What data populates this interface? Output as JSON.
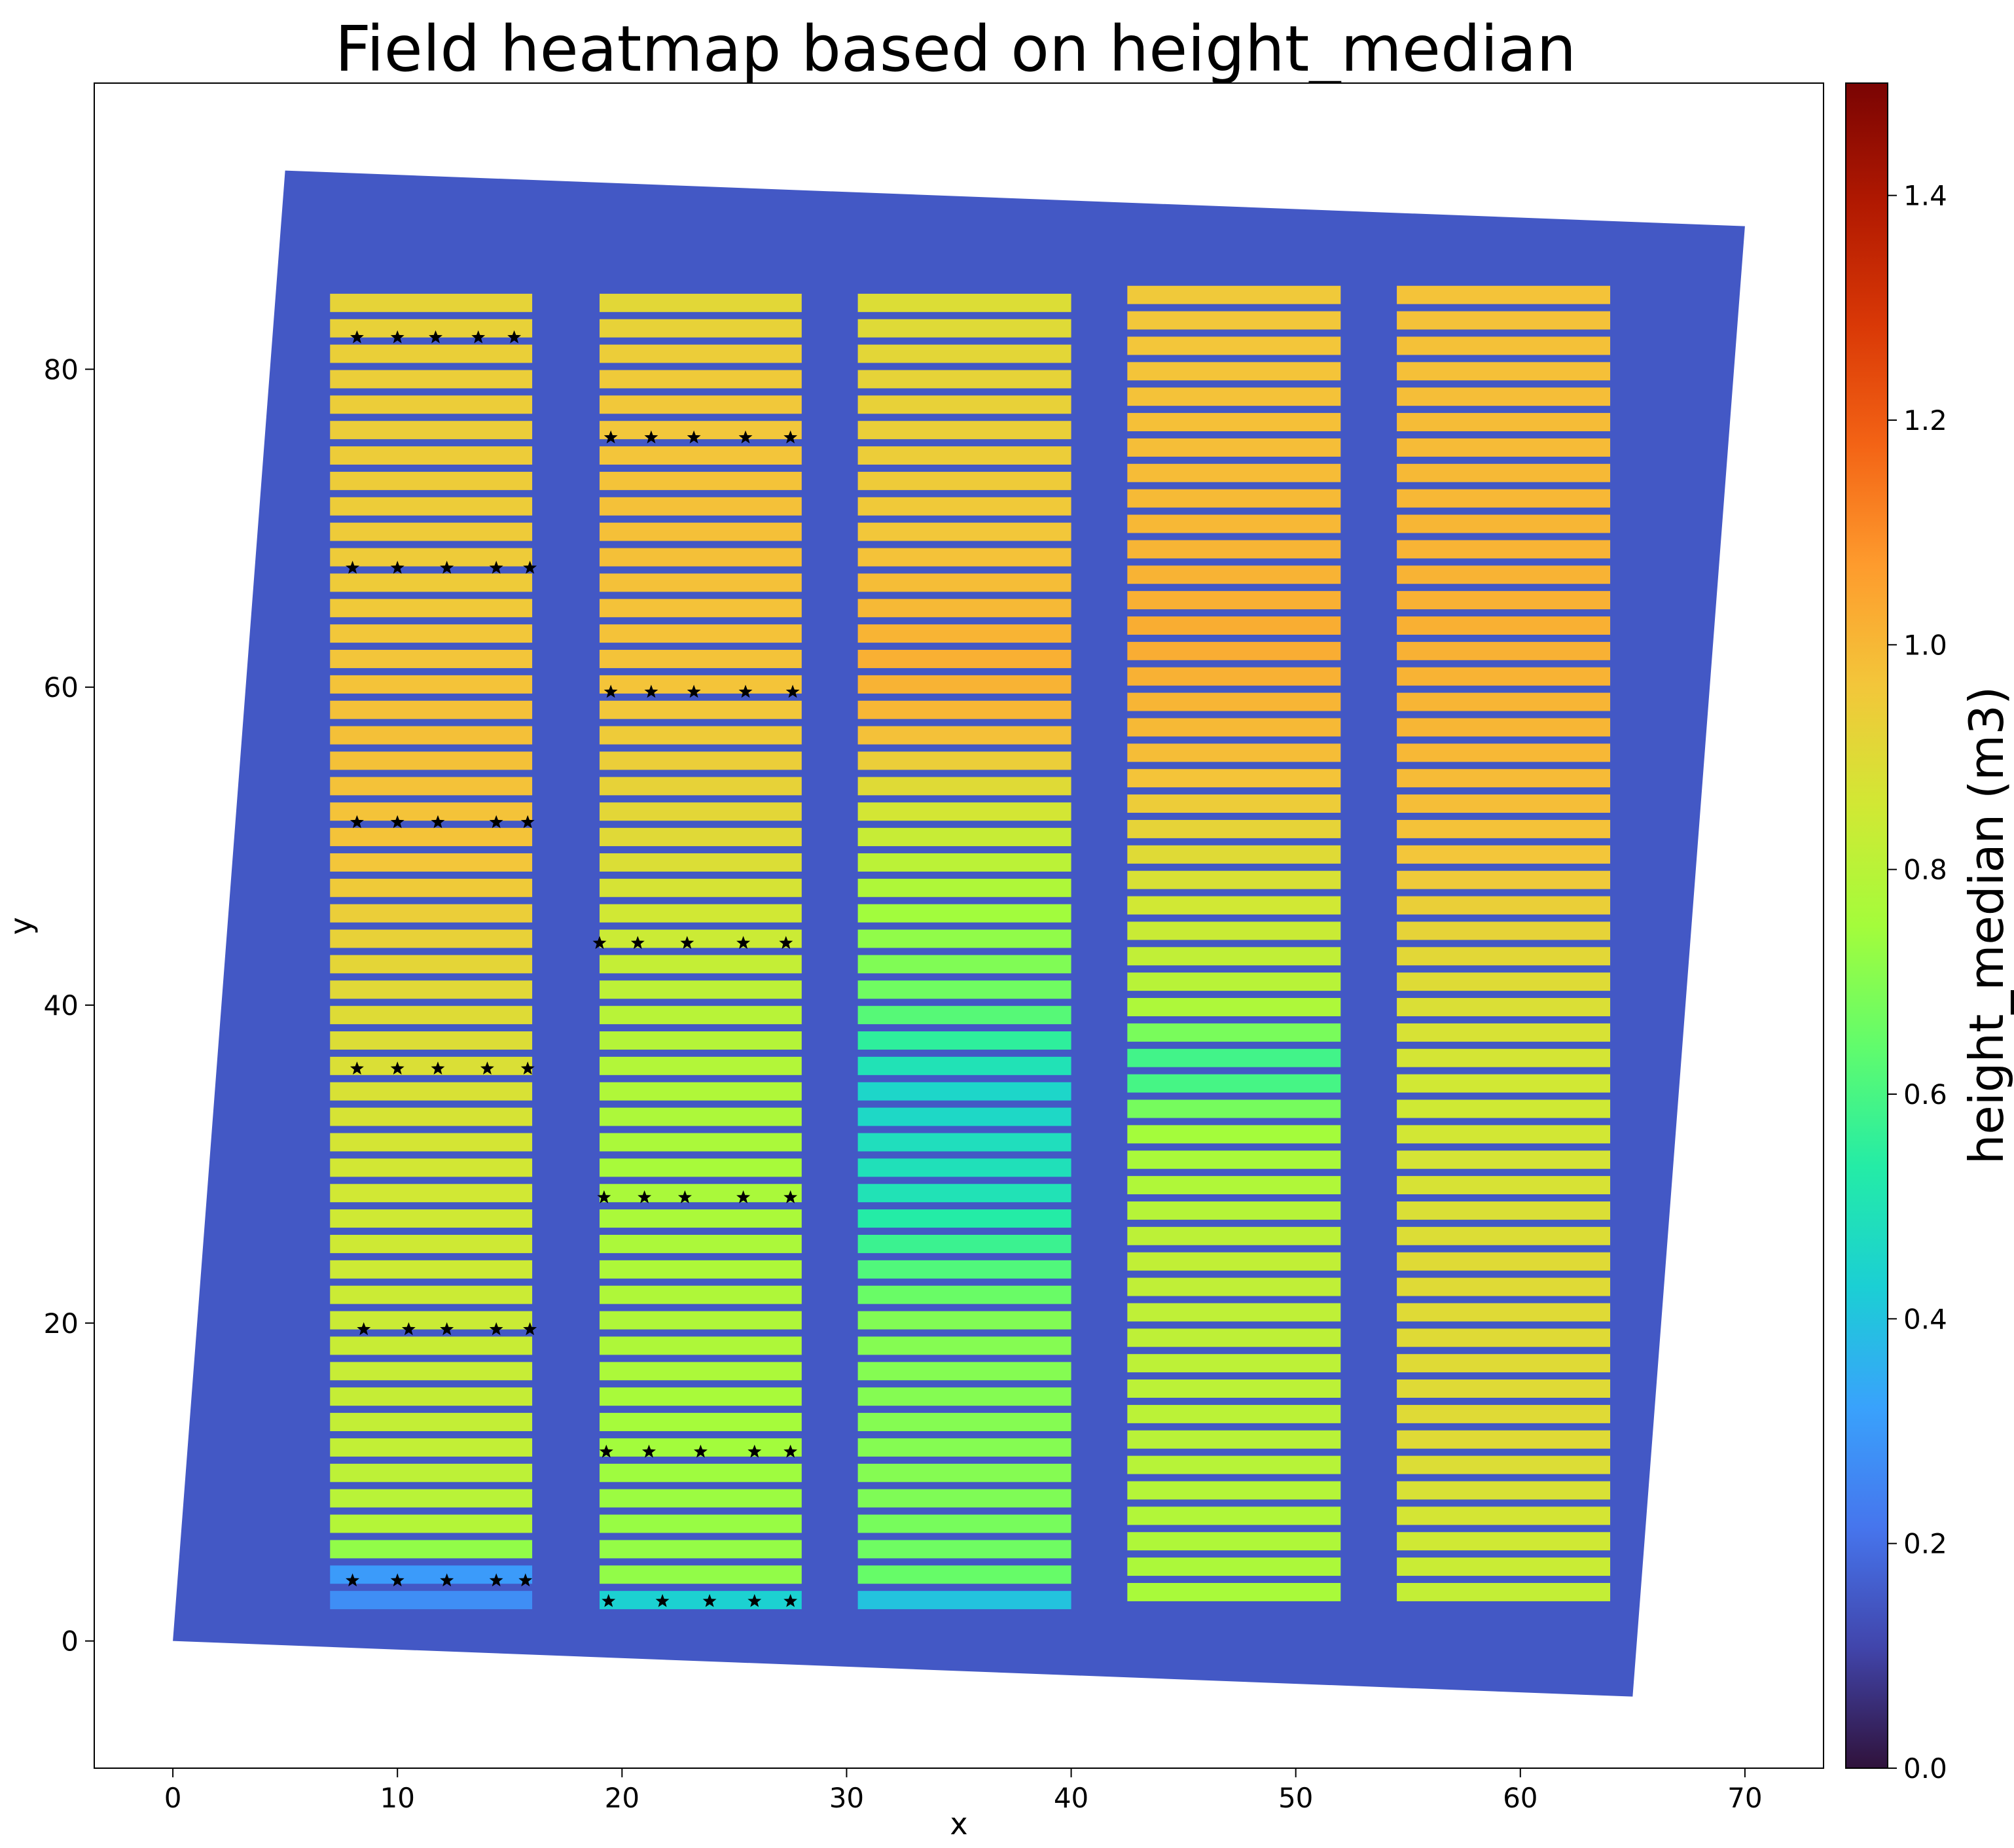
{
  "chart_data": {
    "type": "heatmap",
    "title": "Field heatmap based on height_median",
    "xlabel": "x",
    "ylabel": "y",
    "xlim": [
      -3.5,
      73.5
    ],
    "ylim": [
      -8,
      98
    ],
    "xticks": [
      0,
      10,
      20,
      30,
      40,
      50,
      60,
      70
    ],
    "yticks": [
      0,
      20,
      40,
      60,
      80
    ],
    "grid": false,
    "colorbar": {
      "label": "height_median (m3)",
      "range": [
        0.0,
        1.5
      ],
      "ticks": [
        0.0,
        0.2,
        0.4,
        0.6,
        0.8,
        1.0,
        1.2,
        1.4
      ],
      "tick_labels": [
        "0.0",
        "0.2",
        "0.4",
        "0.6",
        "0.8",
        "1.0",
        "1.2",
        "1.4"
      ],
      "colormap": "turbo",
      "stops": [
        "#30123b",
        "#4145ab",
        "#4675ed",
        "#39a2fc",
        "#1bcfd4",
        "#24eca6",
        "#61fc6c",
        "#a4fc3b",
        "#d1e834",
        "#f3c63a",
        "#fe9b2d",
        "#f36315",
        "#d93806",
        "#b11901",
        "#7a0403"
      ]
    },
    "field": {
      "corners": [
        [
          0,
          0
        ],
        [
          65,
          -3.5
        ],
        [
          70,
          89
        ],
        [
          5,
          92.5
        ]
      ],
      "background_value": 0.15,
      "star_color": "#000000",
      "columns": [
        {
          "x_range": [
            7,
            16
          ],
          "y_range": [
            2,
            85.5
          ],
          "profile": [
            [
              2,
              0.28
            ],
            [
              4,
              0.26
            ],
            [
              6,
              0.78
            ],
            [
              12,
              0.82
            ],
            [
              20,
              0.84
            ],
            [
              30,
              0.86
            ],
            [
              40,
              0.9
            ],
            [
              50,
              0.97
            ],
            [
              58,
              0.98
            ],
            [
              66,
              0.95
            ],
            [
              80,
              0.94
            ],
            [
              85.5,
              0.92
            ]
          ]
        },
        {
          "x_range": [
            19,
            28
          ],
          "y_range": [
            2,
            85.5
          ],
          "profile": [
            [
              2,
              0.32
            ],
            [
              4,
              0.72
            ],
            [
              10,
              0.74
            ],
            [
              20,
              0.78
            ],
            [
              30,
              0.76
            ],
            [
              40,
              0.8
            ],
            [
              50,
              0.9
            ],
            [
              60,
              0.97
            ],
            [
              70,
              0.98
            ],
            [
              80,
              0.95
            ],
            [
              85.5,
              0.9
            ]
          ]
        },
        {
          "x_range": [
            30.5,
            40
          ],
          "y_range": [
            2,
            86
          ],
          "profile": [
            [
              2,
              0.3
            ],
            [
              4,
              0.65
            ],
            [
              10,
              0.7
            ],
            [
              20,
              0.7
            ],
            [
              28,
              0.5
            ],
            [
              32,
              0.48
            ],
            [
              34,
              0.44
            ],
            [
              37,
              0.52
            ],
            [
              40,
              0.65
            ],
            [
              46,
              0.75
            ],
            [
              52,
              0.86
            ],
            [
              58,
              1.0
            ],
            [
              62,
              1.02
            ],
            [
              70,
              0.96
            ],
            [
              80,
              0.92
            ],
            [
              86,
              0.88
            ]
          ]
        },
        {
          "x_range": [
            42.5,
            52
          ],
          "y_range": [
            2.5,
            86.5
          ],
          "profile": [
            [
              2.5,
              0.76
            ],
            [
              12,
              0.8
            ],
            [
              24,
              0.82
            ],
            [
              32,
              0.75
            ],
            [
              36,
              0.55
            ],
            [
              40,
              0.78
            ],
            [
              48,
              0.88
            ],
            [
              55,
              0.98
            ],
            [
              63,
              1.03
            ],
            [
              70,
              1.0
            ],
            [
              80,
              0.97
            ],
            [
              86.5,
              0.95
            ]
          ]
        },
        {
          "x_range": [
            54.5,
            64
          ],
          "y_range": [
            2.5,
            86.5
          ],
          "profile": [
            [
              2.5,
              0.82
            ],
            [
              12,
              0.9
            ],
            [
              24,
              0.9
            ],
            [
              34,
              0.85
            ],
            [
              42,
              0.9
            ],
            [
              50,
              0.97
            ],
            [
              56,
              1.0
            ],
            [
              64,
              1.02
            ],
            [
              72,
              1.0
            ],
            [
              80,
              0.98
            ],
            [
              86.5,
              0.97
            ]
          ]
        }
      ],
      "star_rows": [
        {
          "y": 82,
          "xs": [
            8.2,
            10,
            11.7,
            13.6,
            15.2
          ]
        },
        {
          "y": 67.5,
          "xs": [
            8,
            10,
            12.2,
            14.4,
            15.9
          ]
        },
        {
          "y": 51.5,
          "xs": [
            8.2,
            10,
            11.8,
            14.4,
            15.8
          ]
        },
        {
          "y": 36,
          "xs": [
            8.2,
            10,
            11.8,
            14,
            15.8
          ]
        },
        {
          "y": 19.6,
          "xs": [
            8.5,
            10.5,
            12.2,
            14.4,
            15.9
          ]
        },
        {
          "y": 3.8,
          "xs": [
            8,
            10,
            12.2,
            14.4,
            15.7
          ]
        },
        {
          "y": 75.7,
          "xs": [
            19.5,
            21.3,
            23.2,
            25.5,
            27.5
          ]
        },
        {
          "y": 59.7,
          "xs": [
            19.5,
            21.3,
            23.2,
            25.5,
            27.6
          ]
        },
        {
          "y": 43.9,
          "xs": [
            19,
            20.7,
            22.9,
            25.4,
            27.3
          ]
        },
        {
          "y": 27.9,
          "xs": [
            19.2,
            21,
            22.8,
            25.4,
            27.5
          ]
        },
        {
          "y": 11.9,
          "xs": [
            19.3,
            21.2,
            23.5,
            25.9,
            27.5
          ]
        },
        {
          "y": 2.5,
          "xs": [
            19.4,
            21.8,
            23.9,
            25.9,
            27.5
          ]
        }
      ]
    }
  }
}
